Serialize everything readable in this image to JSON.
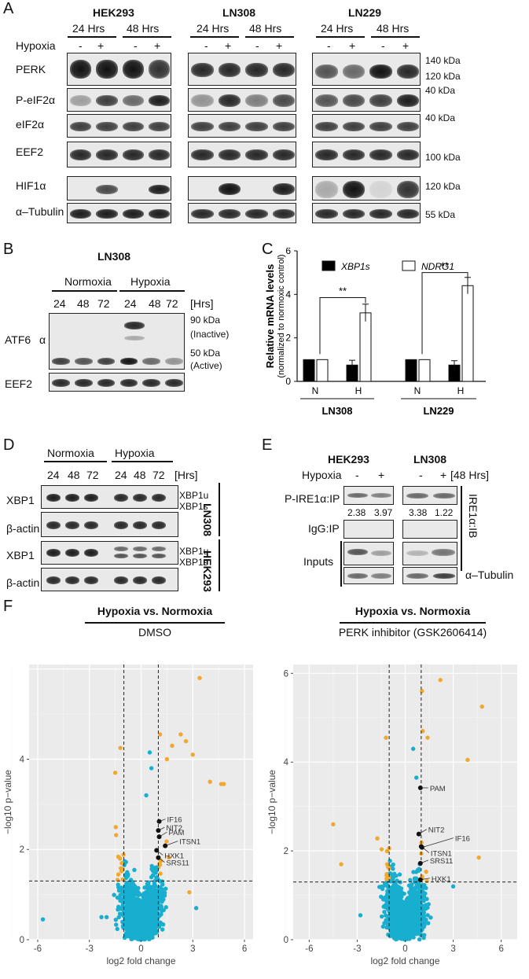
{
  "panels": {
    "A": {
      "letter": "A",
      "cell_lines": [
        "HEK293",
        "LN308",
        "LN229"
      ],
      "times": [
        "24 Hrs",
        "48 Hrs"
      ],
      "hypoxia_label": "Hypoxia",
      "signs": [
        "-",
        "+",
        "-",
        "+"
      ],
      "rows": [
        "PERK",
        "P-eIF2α",
        "eIF2α",
        "EEF2",
        "HIF1α",
        "α–Tubulin"
      ],
      "markers": [
        "140 kDa",
        "120 kDa",
        "40 kDa",
        "40 kDa",
        "100 kDa",
        "120 kDa",
        "55 kDa"
      ]
    },
    "B": {
      "letter": "B",
      "title": "LN308",
      "groups": [
        "Normoxia",
        "Hypoxia"
      ],
      "times": [
        "24",
        "48",
        "72",
        "24",
        "48",
        "72"
      ],
      "unit": "[Hrs]",
      "rows": [
        "ATF6",
        "α",
        "EEF2"
      ],
      "markers": [
        "90 kDa",
        "(Inactive)",
        "50 kDa",
        "(Active)"
      ]
    },
    "C": {
      "letter": "C",
      "legend": [
        "XBP1s",
        "NDRG1"
      ],
      "ylabel": "Relative mRNA levels",
      "ylabel2": "(normalized to normoxic control)",
      "group_labels": [
        "LN308",
        "LN229"
      ],
      "significance": [
        "**",
        "**"
      ]
    },
    "D": {
      "letter": "D",
      "groups": [
        "Normoxia",
        "Hypoxia"
      ],
      "times": [
        "24",
        "48",
        "72",
        "24",
        "48",
        "72"
      ],
      "unit": "[Hrs]",
      "rows": [
        "XBP1",
        "β-actin",
        "XBP1",
        "β-actin"
      ],
      "band_labels": [
        "XBP1u",
        "XBP1s",
        "XBP1u",
        "XBP1s"
      ],
      "cell_lines": [
        "LN308",
        "HEK293"
      ]
    },
    "E": {
      "letter": "E",
      "cell_lines": [
        "HEK293",
        "LN308"
      ],
      "hypoxia_label": "Hypoxia",
      "signs": [
        "-",
        "+",
        "-",
        "+"
      ],
      "unit": "[48 Hrs]",
      "rows": [
        "P-IRE1α:IP",
        "IgG:IP",
        "Inputs",
        "α–Tubulin"
      ],
      "values": [
        "2.38",
        "3.97",
        "3.38",
        "1.22"
      ],
      "side_label": "IRE1α:IB"
    },
    "F": {
      "letter": "F",
      "titles": [
        "Hypoxia vs. Normoxia",
        "Hypoxia vs. Normoxia"
      ],
      "subtitles": [
        "DMSO",
        "PERK inhibitor (GSK2606414)"
      ]
    }
  },
  "chart_data": [
    {
      "type": "bar",
      "categories": [
        "N",
        "H",
        "N",
        "H"
      ],
      "groups": [
        "LN308",
        "LN308",
        "LN229",
        "LN229"
      ],
      "series": [
        {
          "name": "XBP1s",
          "values": [
            1.0,
            0.75,
            1.0,
            0.75
          ],
          "errors": [
            0,
            0.22,
            0,
            0.2
          ]
        },
        {
          "name": "NDRG1",
          "values": [
            1.0,
            3.15,
            1.0,
            4.4
          ],
          "errors": [
            0,
            0.4,
            0,
            0.38
          ]
        }
      ],
      "xlabel": "",
      "ylabel": "Relative mRNA levels",
      "ylim": [
        0,
        6
      ],
      "yticks": [
        0,
        2,
        4,
        6
      ],
      "colors": {
        "XBP1s": "#000000",
        "NDRG1": "#ffffff"
      }
    },
    {
      "type": "scatter",
      "title": "Hypoxia vs. Normoxia",
      "subtitle": "DMSO",
      "xlabel": "log2 fold change",
      "ylabel": "−log10 p−value",
      "xlim": [
        -6.5,
        6.5
      ],
      "ylim": [
        0,
        6.1
      ],
      "xticks": [
        -6,
        -3,
        0,
        3,
        6
      ],
      "yticks": [
        0,
        2,
        4
      ],
      "fc_threshold": 1,
      "p_threshold": 1.3,
      "colors": {
        "significant": "#f0a830",
        "non_significant": "#18aecf",
        "highlight": "#111111",
        "background": "#ebebeb"
      },
      "labeled_points": [
        {
          "label": "IF16",
          "x": 1.05,
          "y": 2.62
        },
        {
          "label": "NIT2",
          "x": 1.0,
          "y": 2.42
        },
        {
          "label": "PAM",
          "x": 1.05,
          "y": 2.28
        },
        {
          "label": "ITSN1",
          "x": 1.4,
          "y": 2.08
        },
        {
          "label": "HXK1",
          "x": 0.9,
          "y": 1.98
        },
        {
          "label": "SRS11",
          "x": 1.0,
          "y": 1.82
        }
      ],
      "points": [
        {
          "x": 3.4,
          "y": 5.8,
          "sig": true
        },
        {
          "x": 1.1,
          "y": 4.55,
          "sig": true
        },
        {
          "x": 2.3,
          "y": 4.55,
          "sig": true
        },
        {
          "x": 2.6,
          "y": 4.4,
          "sig": true
        },
        {
          "x": 1.8,
          "y": 4.3,
          "sig": true
        },
        {
          "x": 3.0,
          "y": 4.1,
          "sig": true
        },
        {
          "x": 1.5,
          "y": 4.0,
          "sig": true
        },
        {
          "x": 0.3,
          "y": 3.2,
          "sig": false
        },
        {
          "x": -1.2,
          "y": 4.25,
          "sig": true
        },
        {
          "x": -1.5,
          "y": 3.7,
          "sig": true
        },
        {
          "x": 4.8,
          "y": 3.45,
          "sig": true
        },
        {
          "x": 4.65,
          "y": 3.45,
          "sig": true
        },
        {
          "x": 4.0,
          "y": 3.5,
          "sig": true
        },
        {
          "x": -5.7,
          "y": 0.45,
          "sig": false
        },
        {
          "x": -2.3,
          "y": 0.5,
          "sig": false
        },
        {
          "x": -2.0,
          "y": 0.5,
          "sig": false
        },
        {
          "x": 2.8,
          "y": 1.05,
          "sig": true
        },
        {
          "x": 3.2,
          "y": 0.7,
          "sig": false
        },
        {
          "x": 0.5,
          "y": 4.15,
          "sig": false
        },
        {
          "x": 0.6,
          "y": 3.8,
          "sig": false
        }
      ]
    },
    {
      "type": "scatter",
      "title": "Hypoxia vs. Normoxia",
      "subtitle": "PERK inhibitor (GSK2606414)",
      "xlabel": "log2 fold change",
      "ylabel": "−log10 p−value",
      "xlim": [
        -7,
        7
      ],
      "ylim": [
        0,
        6.2
      ],
      "xticks": [
        -6,
        -3,
        0,
        3,
        6
      ],
      "yticks": [
        0,
        2,
        4,
        6
      ],
      "fc_threshold": 1,
      "p_threshold": 1.3,
      "colors": {
        "significant": "#f0a830",
        "non_significant": "#18aecf",
        "highlight": "#111111",
        "background": "#ebebeb"
      },
      "labeled_points": [
        {
          "label": "PAM",
          "x": 0.95,
          "y": 3.42
        },
        {
          "label": "NIT2",
          "x": 0.85,
          "y": 2.38
        },
        {
          "label": "IF16",
          "x": 1.05,
          "y": 2.08
        },
        {
          "label": "ITSN1",
          "x": 1.0,
          "y": 2.1
        },
        {
          "label": "SRS11",
          "x": 0.95,
          "y": 1.72
        },
        {
          "label": "HXK1",
          "x": 0.95,
          "y": 1.35
        }
      ],
      "points": [
        {
          "x": 2.2,
          "y": 5.85,
          "sig": true
        },
        {
          "x": 4.8,
          "y": 5.25,
          "sig": true
        },
        {
          "x": 1.05,
          "y": 5.6,
          "sig": true
        },
        {
          "x": 1.1,
          "y": 4.7,
          "sig": true
        },
        {
          "x": 1.4,
          "y": 4.55,
          "sig": true
        },
        {
          "x": 3.9,
          "y": 4.05,
          "sig": true
        },
        {
          "x": 4.6,
          "y": 1.85,
          "sig": true
        },
        {
          "x": -4.5,
          "y": 2.6,
          "sig": true
        },
        {
          "x": -4.0,
          "y": 1.7,
          "sig": true
        },
        {
          "x": -1.2,
          "y": 4.55,
          "sig": true
        },
        {
          "x": 0.5,
          "y": 4.3,
          "sig": false
        },
        {
          "x": 0.7,
          "y": 3.65,
          "sig": false
        },
        {
          "x": -2.8,
          "y": 0.55,
          "sig": false
        },
        {
          "x": 3.0,
          "y": 1.2,
          "sig": false
        }
      ]
    }
  ]
}
